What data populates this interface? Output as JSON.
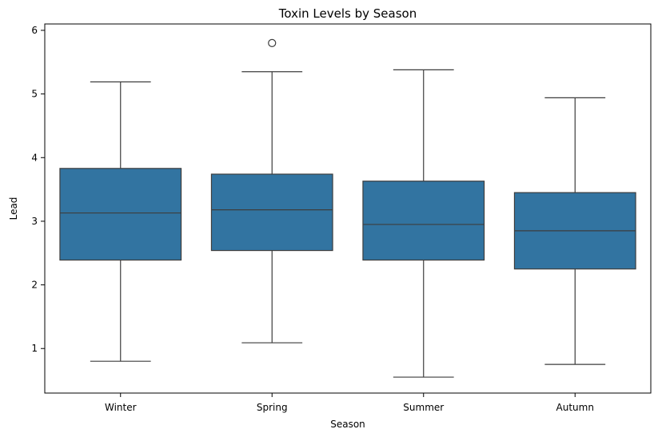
{
  "chart_data": {
    "type": "boxplot",
    "title": "Toxin Levels by Season",
    "xlabel": "Season",
    "ylabel": "Lead",
    "ylim": [
      0.3,
      6.1
    ],
    "yticks": [
      1,
      2,
      3,
      4,
      5,
      6
    ],
    "categories": [
      "Winter",
      "Spring",
      "Summer",
      "Autumn"
    ],
    "boxes": [
      {
        "category": "Winter",
        "whisker_low": 0.8,
        "q1": 2.39,
        "median": 3.13,
        "q3": 3.83,
        "whisker_high": 5.19,
        "outliers": []
      },
      {
        "category": "Spring",
        "whisker_low": 1.09,
        "q1": 2.54,
        "median": 3.18,
        "q3": 3.74,
        "whisker_high": 5.35,
        "outliers": [
          5.8
        ]
      },
      {
        "category": "Summer",
        "whisker_low": 0.55,
        "q1": 2.39,
        "median": 2.95,
        "q3": 3.63,
        "whisker_high": 5.38,
        "outliers": []
      },
      {
        "category": "Autumn",
        "whisker_low": 0.75,
        "q1": 2.25,
        "median": 2.85,
        "q3": 3.45,
        "whisker_high": 4.94,
        "outliers": []
      }
    ],
    "box_color": "#3274a1",
    "line_color": "#3d3d3d",
    "grid": false,
    "legend": "none"
  }
}
